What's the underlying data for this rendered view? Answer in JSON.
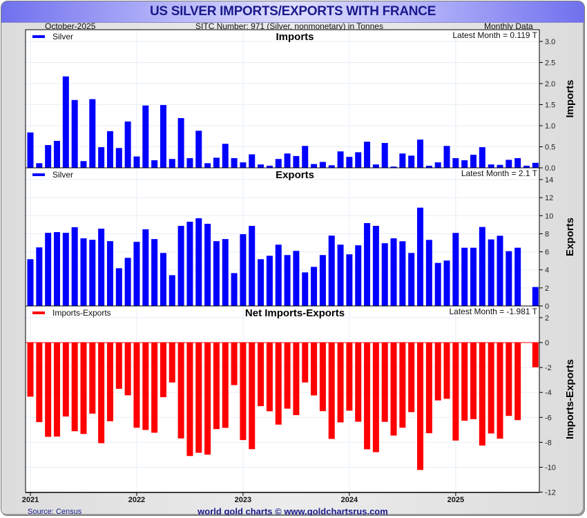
{
  "header": {
    "title": "US SILVER IMPORTS/EXPORTS WITH FRANCE",
    "date": "October-2025",
    "sitc": "SITC Number: 971 (Silver, nonmonetary) in Tonnes",
    "frequency": "Monthly Data"
  },
  "footer": {
    "source": "Source: Census",
    "brand": "world gold charts © www.goldchartsrus.com"
  },
  "colors": {
    "imports": "#0000ff",
    "exports": "#0000ff",
    "net": "#ff0000",
    "title": "#1a1a8c",
    "grid": "#e6eef6"
  },
  "chart_data": [
    {
      "type": "bar",
      "title": "Imports",
      "legend": "Silver",
      "legend_position": "top-left",
      "latest_label": "Latest Month = 0.119 T",
      "ylabel": "Imports",
      "ylim": [
        0,
        3.0
      ],
      "yticks": [
        0.0,
        0.5,
        1.0,
        1.5,
        2.0,
        2.5,
        3.0
      ],
      "ytick_labels": [
        "0.0",
        "0.5",
        "1.0",
        "1.5",
        "2.0",
        "2.5",
        "3.0"
      ],
      "x_start": "2021-01",
      "x_end": "2025-10",
      "values": [
        0.84,
        0.11,
        0.54,
        0.64,
        2.17,
        1.61,
        0.16,
        1.63,
        0.49,
        0.87,
        0.47,
        1.1,
        0.27,
        1.48,
        0.18,
        1.49,
        0.21,
        1.18,
        0.23,
        0.88,
        0.11,
        0.24,
        0.57,
        0.23,
        0.13,
        0.32,
        0.08,
        0.05,
        0.21,
        0.34,
        0.28,
        0.52,
        0.09,
        0.14,
        0.06,
        0.39,
        0.26,
        0.37,
        0.62,
        0.08,
        0.59,
        0.03,
        0.34,
        0.29,
        0.67,
        0.05,
        0.13,
        0.52,
        0.23,
        0.18,
        0.31,
        0.49,
        0.08,
        0.07,
        0.19,
        0.23,
        0.05,
        0.119
      ]
    },
    {
      "type": "bar",
      "title": "Exports",
      "legend": "Silver",
      "legend_position": "top-left",
      "latest_label": "Latest Month = 2.1 T",
      "ylabel": "Exports",
      "ylim": [
        0,
        14
      ],
      "yticks": [
        0,
        2,
        4,
        6,
        8,
        10,
        12,
        14
      ],
      "ytick_labels": [
        "0",
        "2",
        "4",
        "6",
        "8",
        "10",
        "12",
        "14"
      ],
      "x_start": "2021-01",
      "x_end": "2025-10",
      "values": [
        5.18,
        6.49,
        8.1,
        8.18,
        8.1,
        8.72,
        7.49,
        7.33,
        8.56,
        7.18,
        4.18,
        5.33,
        7.1,
        8.49,
        7.41,
        5.87,
        3.41,
        8.87,
        9.33,
        9.72,
        9.1,
        7.18,
        7.41,
        3.64,
        7.95,
        8.87,
        5.18,
        5.56,
        6.79,
        5.64,
        6.1,
        3.72,
        4.33,
        5.64,
        7.79,
        6.79,
        5.72,
        6.72,
        9.18,
        8.87,
        6.95,
        7.49,
        7.17,
        5.87,
        10.89,
        7.32,
        4.77,
        5.03,
        8.09,
        6.45,
        6.45,
        8.75,
        7.37,
        7.78,
        6.07,
        6.45,
        null,
        2.1
      ]
    },
    {
      "type": "bar",
      "title": "Net Imports-Exports",
      "legend": "Imports-Exports",
      "legend_position": "top-left",
      "latest_label": "Latest Month = -1.981 T",
      "ylabel": "Imports-Exports",
      "ylim": [
        -12,
        3
      ],
      "yticks": [
        -12,
        -10,
        -8,
        -6,
        -4,
        -2,
        0,
        2
      ],
      "ytick_labels": [
        "-12",
        "-10",
        "-8",
        "-6",
        "-4",
        "-2",
        "0",
        "2"
      ],
      "x_start": "2021-01",
      "x_end": "2025-10",
      "values": [
        -4.34,
        -6.38,
        -7.56,
        -7.54,
        -5.93,
        -7.11,
        -7.33,
        -5.7,
        -8.07,
        -6.31,
        -3.71,
        -4.23,
        -6.83,
        -7.01,
        -7.23,
        -4.38,
        -3.2,
        -7.69,
        -9.1,
        -8.84,
        -8.99,
        -6.94,
        -6.84,
        -3.41,
        -7.82,
        -8.55,
        -5.1,
        -5.51,
        -6.58,
        -5.3,
        -5.82,
        -3.2,
        -4.24,
        -5.5,
        -7.73,
        -6.4,
        -5.46,
        -6.35,
        -8.56,
        -8.79,
        -6.36,
        -7.46,
        -6.83,
        -5.58,
        -10.22,
        -7.27,
        -4.64,
        -4.51,
        -7.86,
        -6.27,
        -6.14,
        -8.26,
        -7.29,
        -7.71,
        -5.88,
        -6.22,
        null,
        -1.981
      ]
    }
  ],
  "x_axis": {
    "tick_labels": [
      "2021",
      "2022",
      "2023",
      "2024",
      "2025"
    ]
  }
}
